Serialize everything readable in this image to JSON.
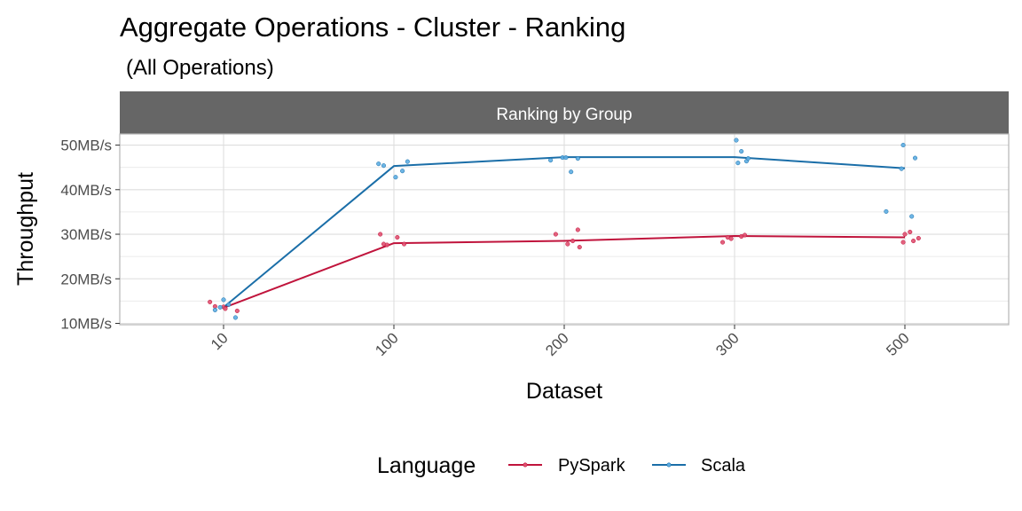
{
  "chart_data": {
    "type": "line",
    "title": "Aggregate Operations - Cluster - Ranking",
    "subtitle": "(All Operations)",
    "facet_label": "Ranking by Group",
    "xlabel": "Dataset",
    "ylabel": "Throughput",
    "categories": [
      "10",
      "100",
      "200",
      "300",
      "500"
    ],
    "y_ticks": [
      {
        "value": 10,
        "label": "10MB/s"
      },
      {
        "value": 20,
        "label": "20MB/s"
      },
      {
        "value": 30,
        "label": "30MB/s"
      },
      {
        "value": 40,
        "label": "40MB/s"
      },
      {
        "value": 50,
        "label": "50MB/s"
      }
    ],
    "ylim": [
      9.7,
      52.5
    ],
    "x_tick_rotation": "45deg",
    "grid": true,
    "legend": {
      "title": "Language",
      "placement": "bottom"
    },
    "series": [
      {
        "name": "PySpark",
        "color": "#C0143C",
        "point_color": "#E05070",
        "line": [
          13.5,
          28.0,
          28.5,
          29.6,
          29.3
        ],
        "points": [
          {
            "x": 0.92,
            "y": 14.8
          },
          {
            "x": 0.95,
            "y": 13.8
          },
          {
            "x": 1.0,
            "y": 13.7
          },
          {
            "x": 1.01,
            "y": 13.3
          },
          {
            "x": 1.08,
            "y": 12.8
          },
          {
            "x": 1.92,
            "y": 30.0
          },
          {
            "x": 1.94,
            "y": 27.8
          },
          {
            "x": 1.96,
            "y": 27.6
          },
          {
            "x": 2.02,
            "y": 29.3
          },
          {
            "x": 2.06,
            "y": 27.8
          },
          {
            "x": 2.95,
            "y": 30.0
          },
          {
            "x": 3.02,
            "y": 27.8
          },
          {
            "x": 3.05,
            "y": 28.5
          },
          {
            "x": 3.08,
            "y": 31.0
          },
          {
            "x": 3.09,
            "y": 27.1
          },
          {
            "x": 3.93,
            "y": 28.2
          },
          {
            "x": 3.96,
            "y": 29.3
          },
          {
            "x": 3.98,
            "y": 29.0
          },
          {
            "x": 4.04,
            "y": 29.5
          },
          {
            "x": 4.06,
            "y": 29.8
          },
          {
            "x": 4.99,
            "y": 28.2
          },
          {
            "x": 5.0,
            "y": 30.0
          },
          {
            "x": 5.03,
            "y": 30.5
          },
          {
            "x": 5.05,
            "y": 28.5
          },
          {
            "x": 5.08,
            "y": 29.1
          }
        ]
      },
      {
        "name": "Scala",
        "color": "#1A6EA8",
        "point_color": "#5DADE2",
        "line": [
          13.6,
          45.3,
          47.3,
          47.3,
          44.8
        ],
        "points": [
          {
            "x": 0.95,
            "y": 13.0
          },
          {
            "x": 0.98,
            "y": 13.6
          },
          {
            "x": 1.0,
            "y": 15.3
          },
          {
            "x": 1.03,
            "y": 14.2
          },
          {
            "x": 1.07,
            "y": 11.3
          },
          {
            "x": 1.91,
            "y": 45.8
          },
          {
            "x": 1.94,
            "y": 45.4
          },
          {
            "x": 2.01,
            "y": 42.8
          },
          {
            "x": 2.05,
            "y": 44.2
          },
          {
            "x": 2.08,
            "y": 46.3
          },
          {
            "x": 2.92,
            "y": 46.6
          },
          {
            "x": 2.99,
            "y": 47.2
          },
          {
            "x": 3.01,
            "y": 47.2
          },
          {
            "x": 3.04,
            "y": 44.0
          },
          {
            "x": 3.08,
            "y": 47.0
          },
          {
            "x": 4.01,
            "y": 51.1
          },
          {
            "x": 4.02,
            "y": 46.0
          },
          {
            "x": 4.04,
            "y": 48.6
          },
          {
            "x": 4.07,
            "y": 46.4
          },
          {
            "x": 4.08,
            "y": 47.0
          },
          {
            "x": 4.89,
            "y": 35.1
          },
          {
            "x": 4.98,
            "y": 44.7
          },
          {
            "x": 4.99,
            "y": 50.0
          },
          {
            "x": 5.04,
            "y": 34.0
          },
          {
            "x": 5.06,
            "y": 47.1
          }
        ]
      }
    ]
  }
}
